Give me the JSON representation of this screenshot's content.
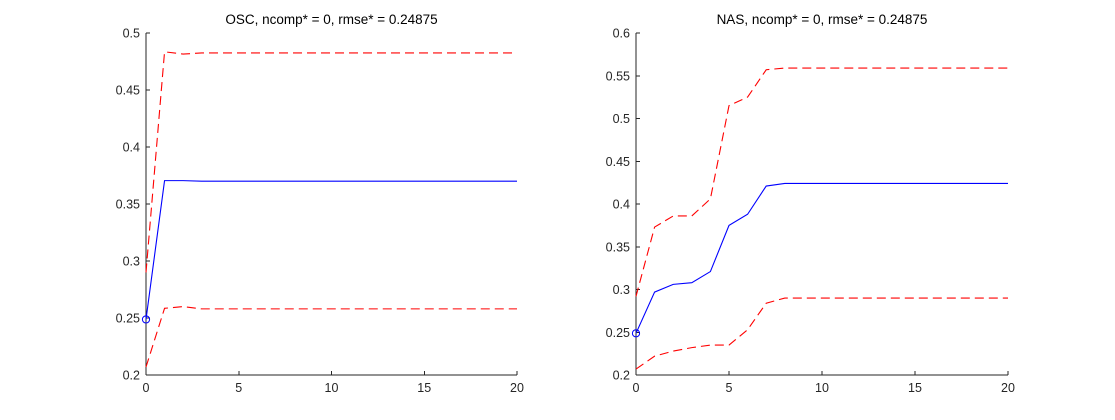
{
  "chart_data": [
    {
      "type": "line",
      "title": "OSC, ncomp* = 0, rmse* = 0.24875",
      "xlabel": "",
      "ylabel": "",
      "xlim": [
        0,
        20
      ],
      "ylim": [
        0.2,
        0.5
      ],
      "xticks": [
        0,
        5,
        10,
        15,
        20
      ],
      "xtick_labels": [
        "0",
        "5",
        "10",
        "15",
        "20"
      ],
      "yticks": [
        0.2,
        0.25,
        0.3,
        0.35,
        0.4,
        0.45,
        0.5
      ],
      "ytick_labels": [
        "0.2",
        "0.25",
        "0.3",
        "0.35",
        "0.4",
        "0.45",
        "0.5"
      ],
      "grid": false,
      "x": [
        0,
        1,
        2,
        3,
        4,
        5,
        6,
        7,
        8,
        9,
        10,
        11,
        12,
        13,
        14,
        15,
        16,
        17,
        18,
        19,
        20
      ],
      "series": [
        {
          "role": "mean",
          "color": "#0000ff",
          "style": "solid",
          "values": [
            0.24875,
            0.3705,
            0.3705,
            0.37,
            0.37,
            0.37,
            0.37,
            0.37,
            0.37,
            0.37,
            0.37,
            0.37,
            0.37,
            0.37,
            0.37,
            0.37,
            0.37,
            0.37,
            0.37,
            0.37,
            0.37
          ]
        },
        {
          "role": "upper",
          "color": "#ff0000",
          "style": "dashed",
          "values": [
            0.29,
            0.4835,
            0.4815,
            0.4825,
            0.4825,
            0.4825,
            0.4825,
            0.4825,
            0.4825,
            0.4825,
            0.4825,
            0.4825,
            0.4825,
            0.4825,
            0.4825,
            0.4825,
            0.4825,
            0.4825,
            0.4825,
            0.4825,
            0.4825
          ]
        },
        {
          "role": "lower",
          "color": "#ff0000",
          "style": "dashed",
          "values": [
            0.207,
            0.2585,
            0.26,
            0.258,
            0.258,
            0.258,
            0.258,
            0.258,
            0.258,
            0.258,
            0.258,
            0.258,
            0.258,
            0.258,
            0.258,
            0.258,
            0.258,
            0.258,
            0.258,
            0.258,
            0.258
          ]
        }
      ],
      "marker": {
        "x": 0,
        "y": 0.24875,
        "shape": "circle",
        "color": "#0000ff"
      }
    },
    {
      "type": "line",
      "title": "NAS, ncomp* = 0, rmse* = 0.24875",
      "xlabel": "",
      "ylabel": "",
      "xlim": [
        0,
        20
      ],
      "ylim": [
        0.2,
        0.6
      ],
      "xticks": [
        0,
        5,
        10,
        15,
        20
      ],
      "xtick_labels": [
        "0",
        "5",
        "10",
        "15",
        "20"
      ],
      "yticks": [
        0.2,
        0.25,
        0.3,
        0.35,
        0.4,
        0.45,
        0.5,
        0.55,
        0.6
      ],
      "ytick_labels": [
        "0.2",
        "0.25",
        "0.3",
        "0.35",
        "0.4",
        "0.45",
        "0.5",
        "0.55",
        "0.6"
      ],
      "grid": false,
      "x": [
        0,
        1,
        2,
        3,
        4,
        5,
        6,
        7,
        8,
        9,
        10,
        11,
        12,
        13,
        14,
        15,
        16,
        17,
        18,
        19,
        20
      ],
      "series": [
        {
          "role": "mean",
          "color": "#0000ff",
          "style": "solid",
          "values": [
            0.24875,
            0.297,
            0.306,
            0.308,
            0.321,
            0.375,
            0.388,
            0.421,
            0.424,
            0.424,
            0.424,
            0.424,
            0.424,
            0.424,
            0.424,
            0.424,
            0.424,
            0.424,
            0.424,
            0.424,
            0.424
          ]
        },
        {
          "role": "upper",
          "color": "#ff0000",
          "style": "dashed",
          "values": [
            0.292,
            0.373,
            0.386,
            0.386,
            0.406,
            0.515,
            0.525,
            0.557,
            0.559,
            0.559,
            0.559,
            0.559,
            0.559,
            0.559,
            0.559,
            0.559,
            0.559,
            0.559,
            0.559,
            0.559,
            0.559
          ]
        },
        {
          "role": "lower",
          "color": "#ff0000",
          "style": "dashed",
          "values": [
            0.207,
            0.222,
            0.228,
            0.232,
            0.235,
            0.235,
            0.253,
            0.284,
            0.29,
            0.29,
            0.29,
            0.29,
            0.29,
            0.29,
            0.29,
            0.29,
            0.29,
            0.29,
            0.29,
            0.29,
            0.29
          ]
        }
      ],
      "marker": {
        "x": 0,
        "y": 0.24875,
        "shape": "circle",
        "color": "#0000ff"
      }
    }
  ]
}
